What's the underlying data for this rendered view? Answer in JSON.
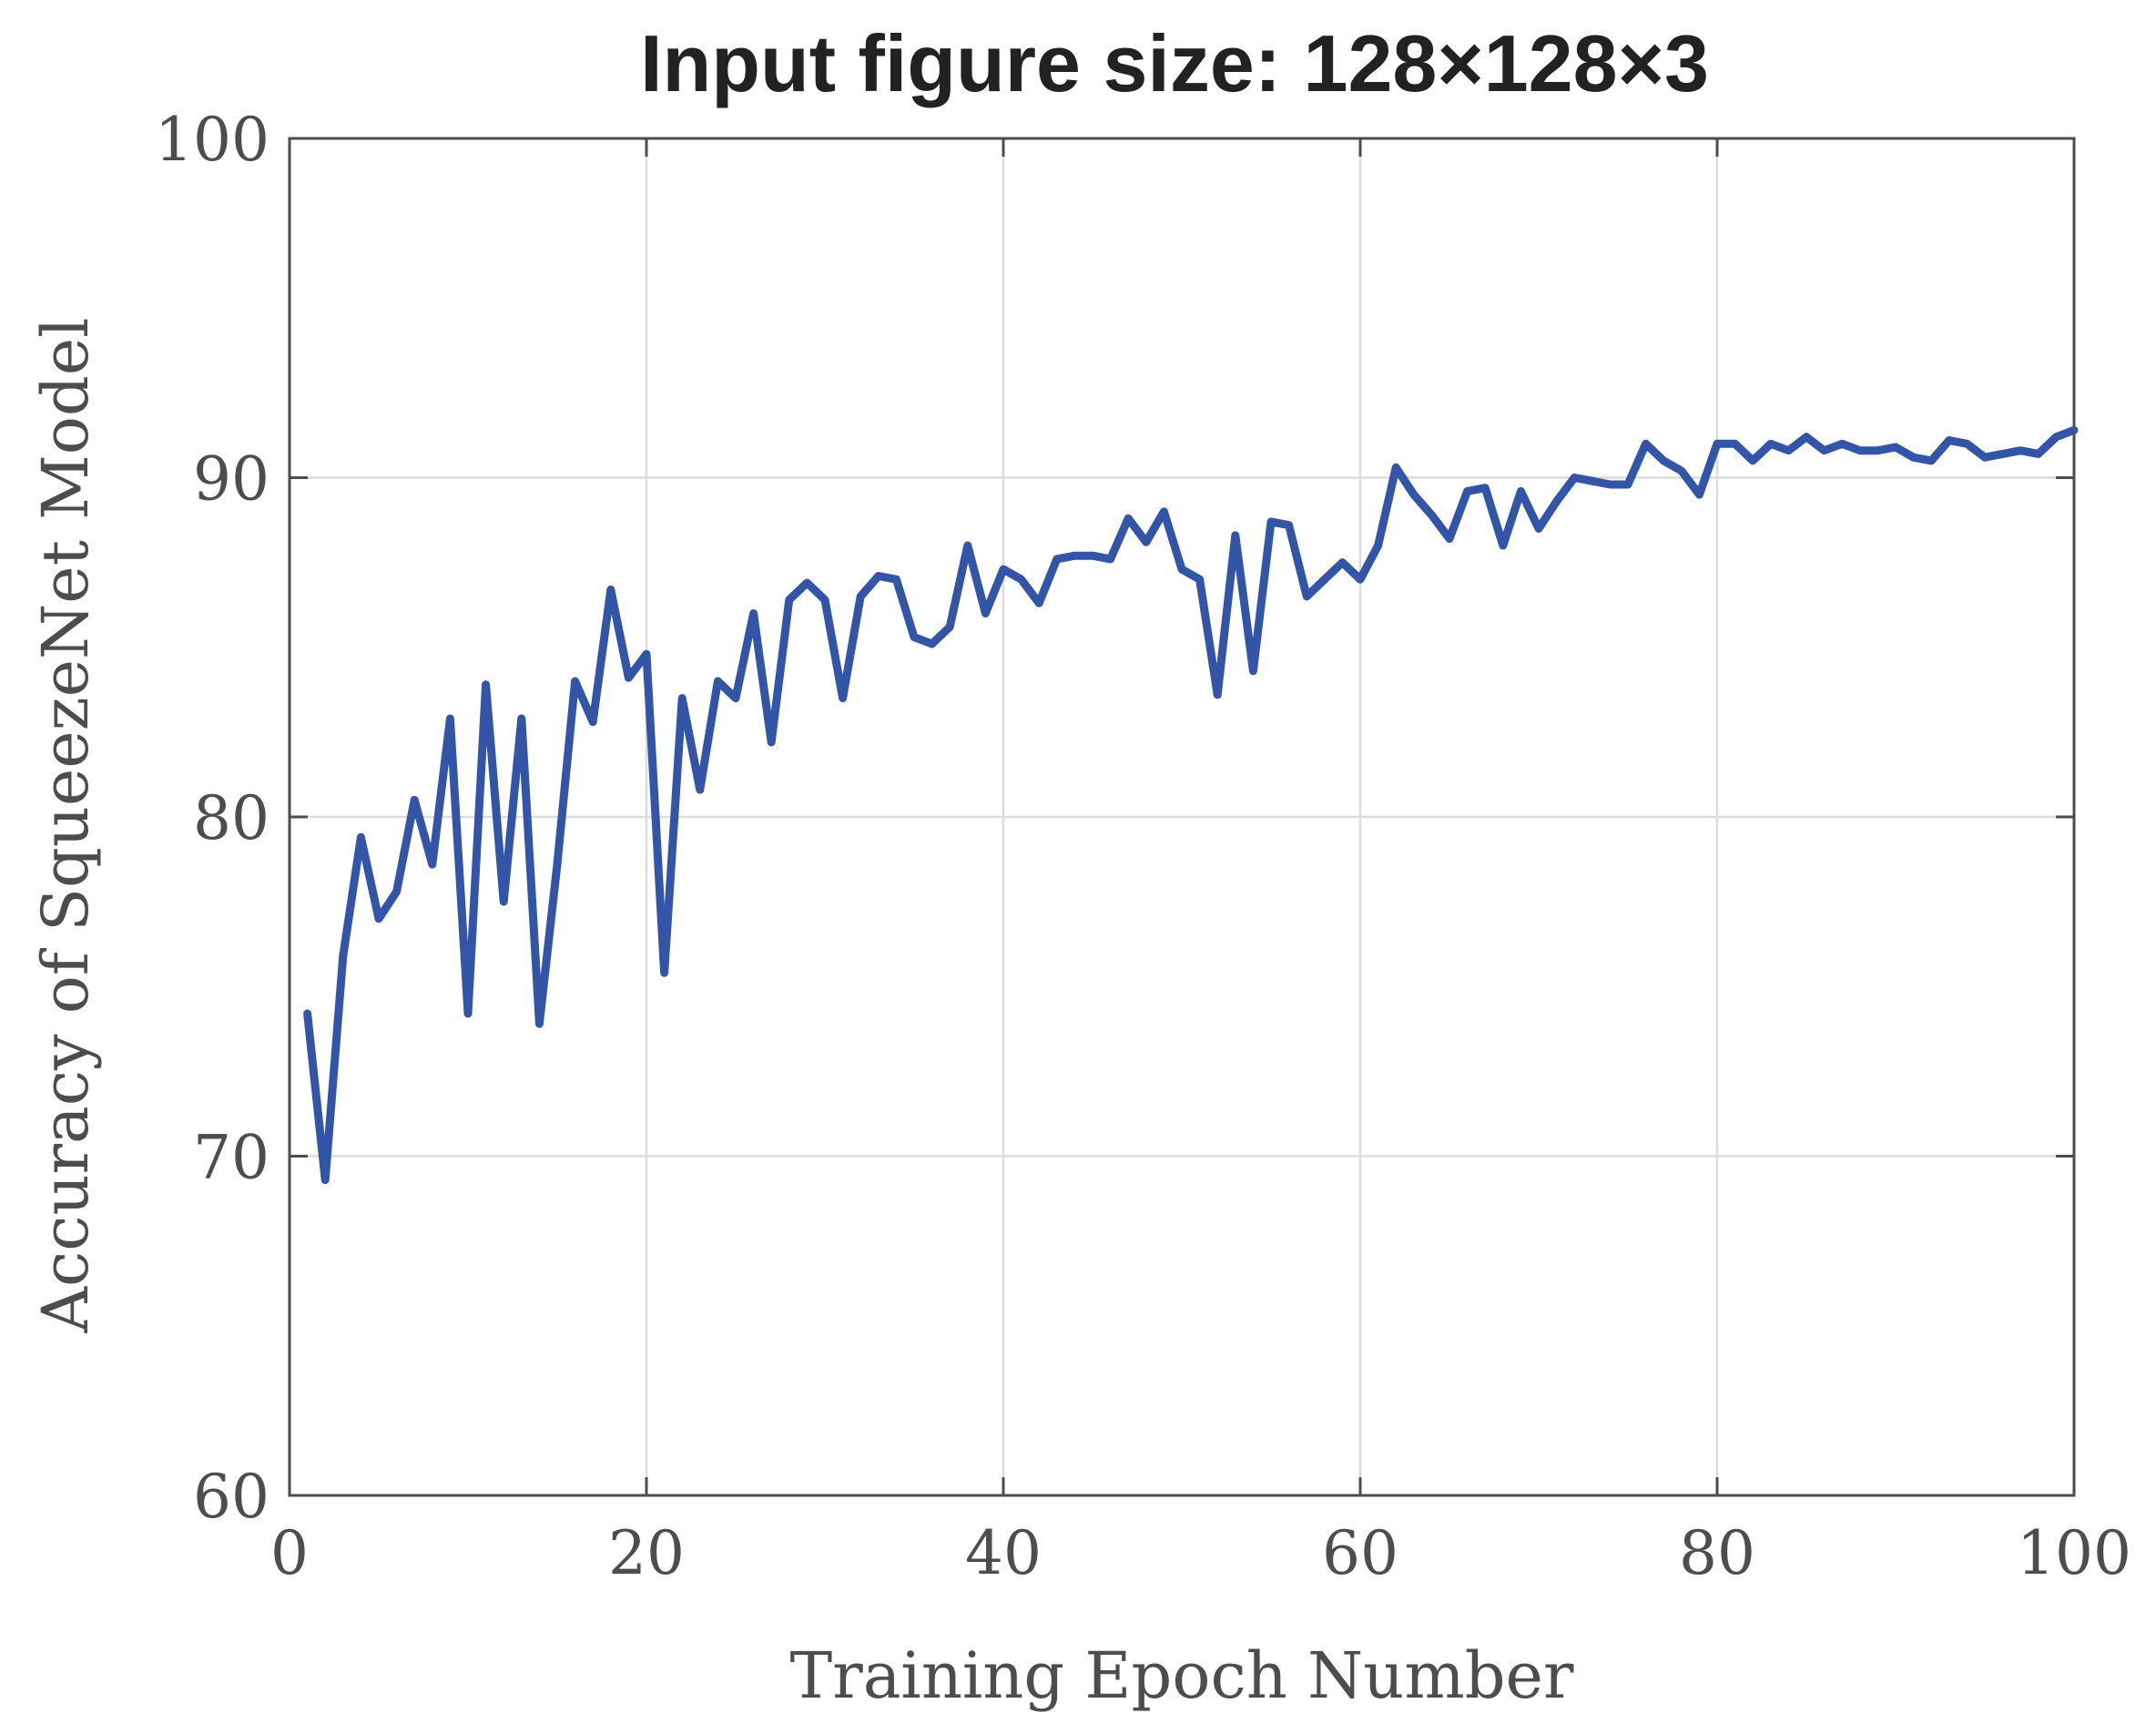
{
  "chart_data": {
    "type": "line",
    "title": "Input figure size: 128×128×3",
    "xlabel": "Training Epoch Number",
    "ylabel": "Accuracy of SqueezeNet Model",
    "xlim": [
      0,
      100
    ],
    "ylim": [
      60,
      100
    ],
    "xticks": [
      0,
      20,
      40,
      60,
      80,
      100
    ],
    "yticks": [
      60,
      70,
      80,
      90,
      100
    ],
    "xtick_labels": [
      "0",
      "20",
      "40",
      "60",
      "80",
      "100"
    ],
    "ytick_labels": [
      "60",
      "70",
      "80",
      "90",
      "100"
    ],
    "grid": true,
    "color": "#3355a8",
    "x": [
      1,
      2,
      3,
      4,
      5,
      6,
      7,
      8,
      9,
      10,
      11,
      12,
      13,
      14,
      15,
      16,
      17,
      18,
      19,
      20,
      21,
      22,
      23,
      24,
      25,
      26,
      27,
      28,
      29,
      30,
      31,
      32,
      33,
      34,
      35,
      36,
      37,
      38,
      39,
      40,
      41,
      42,
      43,
      44,
      45,
      46,
      47,
      48,
      49,
      50,
      51,
      52,
      53,
      54,
      55,
      56,
      57,
      58,
      59,
      60,
      61,
      62,
      63,
      64,
      65,
      66,
      67,
      68,
      69,
      70,
      71,
      72,
      73,
      74,
      75,
      76,
      77,
      78,
      79,
      80,
      81,
      82,
      83,
      84,
      85,
      86,
      87,
      88,
      89,
      90,
      91,
      92,
      93,
      94,
      95,
      96,
      97,
      98,
      99,
      100
    ],
    "y": [
      74.2,
      69.3,
      75.9,
      79.4,
      77.0,
      77.8,
      80.5,
      78.6,
      82.9,
      74.2,
      83.9,
      77.5,
      82.9,
      73.9,
      78.6,
      84.0,
      82.8,
      86.7,
      84.1,
      84.8,
      75.4,
      83.5,
      80.8,
      84.0,
      83.5,
      86.0,
      82.2,
      86.4,
      86.9,
      86.4,
      83.5,
      86.5,
      87.1,
      87.0,
      85.3,
      85.1,
      85.6,
      88.0,
      86.0,
      87.3,
      87.0,
      86.3,
      87.6,
      87.7,
      87.7,
      87.6,
      88.8,
      88.1,
      89.0,
      87.3,
      87.0,
      83.6,
      88.3,
      84.3,
      88.7,
      88.6,
      86.5,
      87.0,
      87.5,
      87.0,
      88.0,
      90.3,
      89.5,
      88.9,
      88.2,
      89.6,
      89.7,
      88.0,
      89.6,
      88.5,
      89.3,
      90.0,
      89.9,
      89.8,
      89.8,
      91.0,
      90.5,
      90.2,
      89.5,
      91.0,
      91.0,
      90.5,
      91.0,
      90.8,
      91.2,
      90.8,
      91.0,
      90.8,
      90.8,
      90.9,
      90.6,
      90.5,
      91.1,
      91.0,
      90.6,
      90.7,
      90.8,
      90.7,
      91.2,
      91.4
    ]
  }
}
